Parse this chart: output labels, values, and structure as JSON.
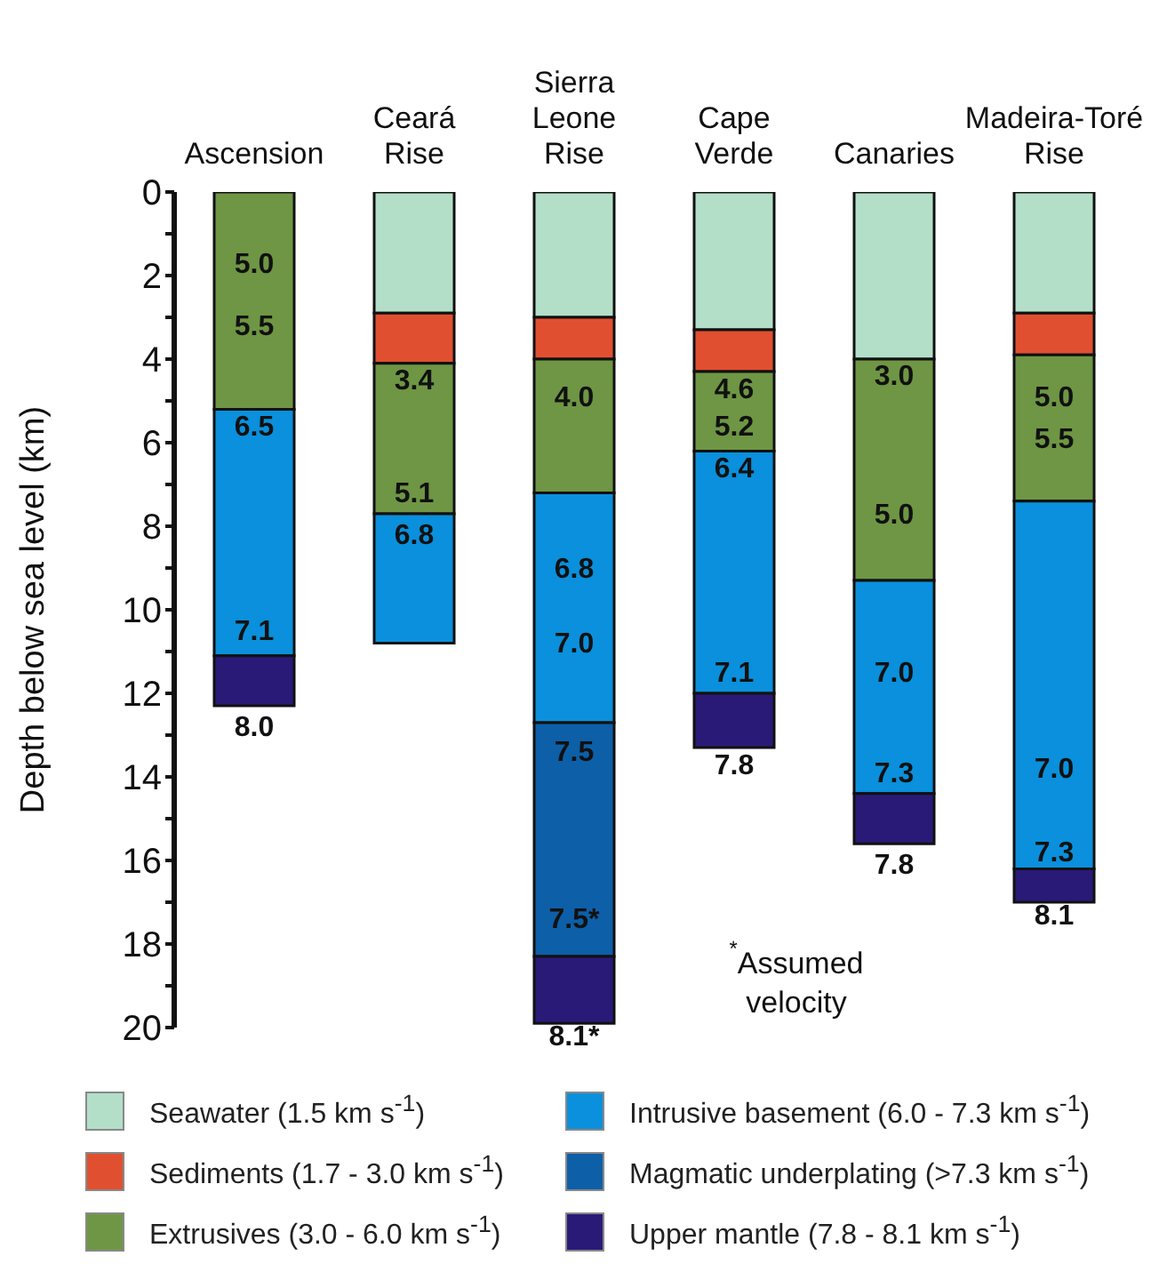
{
  "chart_data": {
    "type": "bar",
    "stacked": true,
    "categories": [
      "Ascension",
      "Ceará Rise",
      "Sierra Leone Rise",
      "Cape Verde",
      "Canaries",
      "Madeira-Toré Rise"
    ],
    "ylabel": "Depth below sea level (km)",
    "ylim": [
      20,
      0
    ],
    "yticks": [
      0,
      {
        "value": 1,
        "label": null
      },
      2,
      {
        "value": 3,
        "label": null
      },
      4,
      {
        "value": 5,
        "label": null
      },
      6,
      {
        "value": 7,
        "label": null
      },
      8,
      {
        "value": 9,
        "label": null
      },
      10,
      {
        "value": 11,
        "label": null
      },
      12,
      {
        "value": 13,
        "label": null
      },
      14,
      {
        "value": 15,
        "label": null
      },
      16,
      {
        "value": 17,
        "label": null
      },
      18,
      {
        "value": 19,
        "label": null
      },
      20
    ],
    "series": [
      {
        "name": "Seawater (1.5 km s$^{-1}$)",
        "color": "#b3dfc9",
        "values": [
          null,
          2.9,
          3.0,
          3.3,
          4.0,
          2.9
        ]
      },
      {
        "name": "Sediments (1.7 - 3.0 km s$^{-1}$)",
        "color": "#e05030",
        "values": [
          null,
          1.2,
          1.0,
          1.0,
          null,
          1.0
        ]
      },
      {
        "name": "Extrusives (3.0 - 6.0 km s$^{-1}$)",
        "color": "#6e9644",
        "values": [
          5.2,
          3.6,
          3.2,
          1.9,
          5.3,
          3.5
        ]
      },
      {
        "name": "Intrusive basement (6.0 - 7.3 km s$^{-1}$)",
        "color": "#0a90dc",
        "values": [
          5.9,
          3.1,
          5.5,
          5.8,
          5.1,
          8.8
        ]
      },
      {
        "name": "Magmatic underplating (>7.3 km s$^{-1}$)",
        "color": "#0d5fa8",
        "values": [
          null,
          null,
          5.6,
          null,
          null,
          null
        ]
      },
      {
        "name": "Upper mantle (7.8 - 8.1 km s$^{-1}$)",
        "color": "#2a1a78",
        "values": [
          1.2,
          null,
          1.6,
          1.3,
          1.2,
          0.8
        ]
      }
    ],
    "annotations": [
      "5.0",
      "5.5",
      "6.5",
      "7.1",
      "8.0",
      "3.4",
      "5.1",
      "6.8",
      "4.0",
      "6.8",
      "7.0",
      "7.5",
      "7.5*",
      "8.1*",
      "4.6",
      "5.2",
      "6.4",
      "7.1",
      "7.8",
      "3.0",
      "5.0",
      "7.0",
      "7.3",
      "7.8",
      "5.0",
      "5.5",
      "7.0",
      "7.3",
      "8.1",
      "$^{*}$Assumed velocity"
    ],
    "legend": "bottom"
  }
}
